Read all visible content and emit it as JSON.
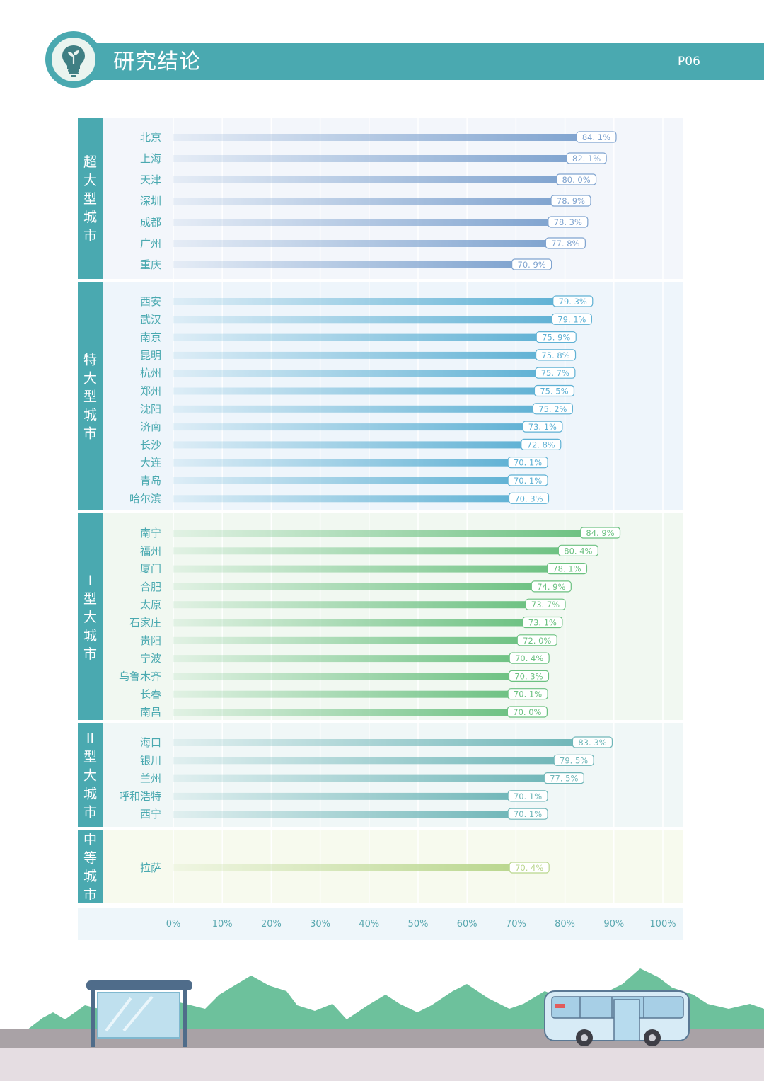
{
  "header": {
    "title": "研究结论",
    "page": "P06"
  },
  "colors": {
    "teal": "#4aa9b0",
    "super": "#7fa3cf",
    "mega": "#5fb1d4",
    "type1": "#6cc181",
    "type2": "#6fb6b8",
    "medium": "#b9d68d"
  },
  "chart_data": {
    "type": "bar",
    "orientation": "horizontal",
    "xlim": [
      0,
      100
    ],
    "x_ticks": [
      "0%",
      "10%",
      "20%",
      "30%",
      "40%",
      "50%",
      "60%",
      "70%",
      "80%",
      "90%",
      "100%"
    ],
    "groups": [
      {
        "name": "超大型城市",
        "label_chars": [
          "超",
          "大",
          "型",
          "城",
          "市"
        ],
        "color_key": "super",
        "categories": [
          "北京",
          "上海",
          "天津",
          "深圳",
          "成都",
          "广州",
          "重庆"
        ],
        "values": [
          84.1,
          82.1,
          80.0,
          78.9,
          78.3,
          77.8,
          70.9
        ],
        "labels": [
          "84. 1%",
          "82. 1%",
          "80. 0%",
          "78. 9%",
          "78. 3%",
          "77. 8%",
          "70. 9%"
        ]
      },
      {
        "name": "特大型城市",
        "label_chars": [
          "特",
          "大",
          "型",
          "城",
          "市"
        ],
        "color_key": "mega",
        "categories": [
          "西安",
          "武汉",
          "南京",
          "昆明",
          "杭州",
          "郑州",
          "沈阳",
          "济南",
          "长沙",
          "大连",
          "青岛",
          "哈尔滨"
        ],
        "values": [
          79.3,
          79.1,
          75.9,
          75.8,
          75.7,
          75.5,
          75.2,
          73.1,
          72.8,
          70.1,
          70.1,
          70.3
        ],
        "labels": [
          "79. 3%",
          "79. 1%",
          "75. 9%",
          "75. 8%",
          "75. 7%",
          "75. 5%",
          "75. 2%",
          "73. 1%",
          "72. 8%",
          "70. 1%",
          "70. 1%",
          "70. 3%"
        ]
      },
      {
        "name": "I型大城市",
        "label_chars": [
          "I",
          "型",
          "大",
          "城",
          "市"
        ],
        "color_key": "type1",
        "categories": [
          "南宁",
          "福州",
          "厦门",
          "合肥",
          "太原",
          "石家庄",
          "贵阳",
          "宁波",
          "乌鲁木齐",
          "长春",
          "南昌"
        ],
        "values": [
          84.9,
          80.4,
          78.1,
          74.9,
          73.7,
          73.1,
          72.0,
          70.4,
          70.3,
          70.1,
          70.0
        ],
        "labels": [
          "84. 9%",
          "80. 4%",
          "78. 1%",
          "74. 9%",
          "73. 7%",
          "73. 1%",
          "72. 0%",
          "70. 4%",
          "70. 3%",
          "70. 1%",
          "70. 0%"
        ]
      },
      {
        "name": "II型大城市",
        "label_chars": [
          "II",
          "型",
          "大",
          "城",
          "市"
        ],
        "color_key": "type2",
        "categories": [
          "海口",
          "银川",
          "兰州",
          "呼和浩特",
          "西宁"
        ],
        "values": [
          83.3,
          79.5,
          77.5,
          70.1,
          70.1
        ],
        "labels": [
          "83. 3%",
          "79. 5%",
          "77. 5%",
          "70. 1%",
          "70. 1%"
        ]
      },
      {
        "name": "中等城市",
        "label_chars": [
          "中",
          "等",
          "城",
          "市"
        ],
        "color_key": "medium",
        "categories": [
          "拉萨"
        ],
        "values": [
          70.4
        ],
        "labels": [
          "70. 4%"
        ]
      }
    ]
  }
}
